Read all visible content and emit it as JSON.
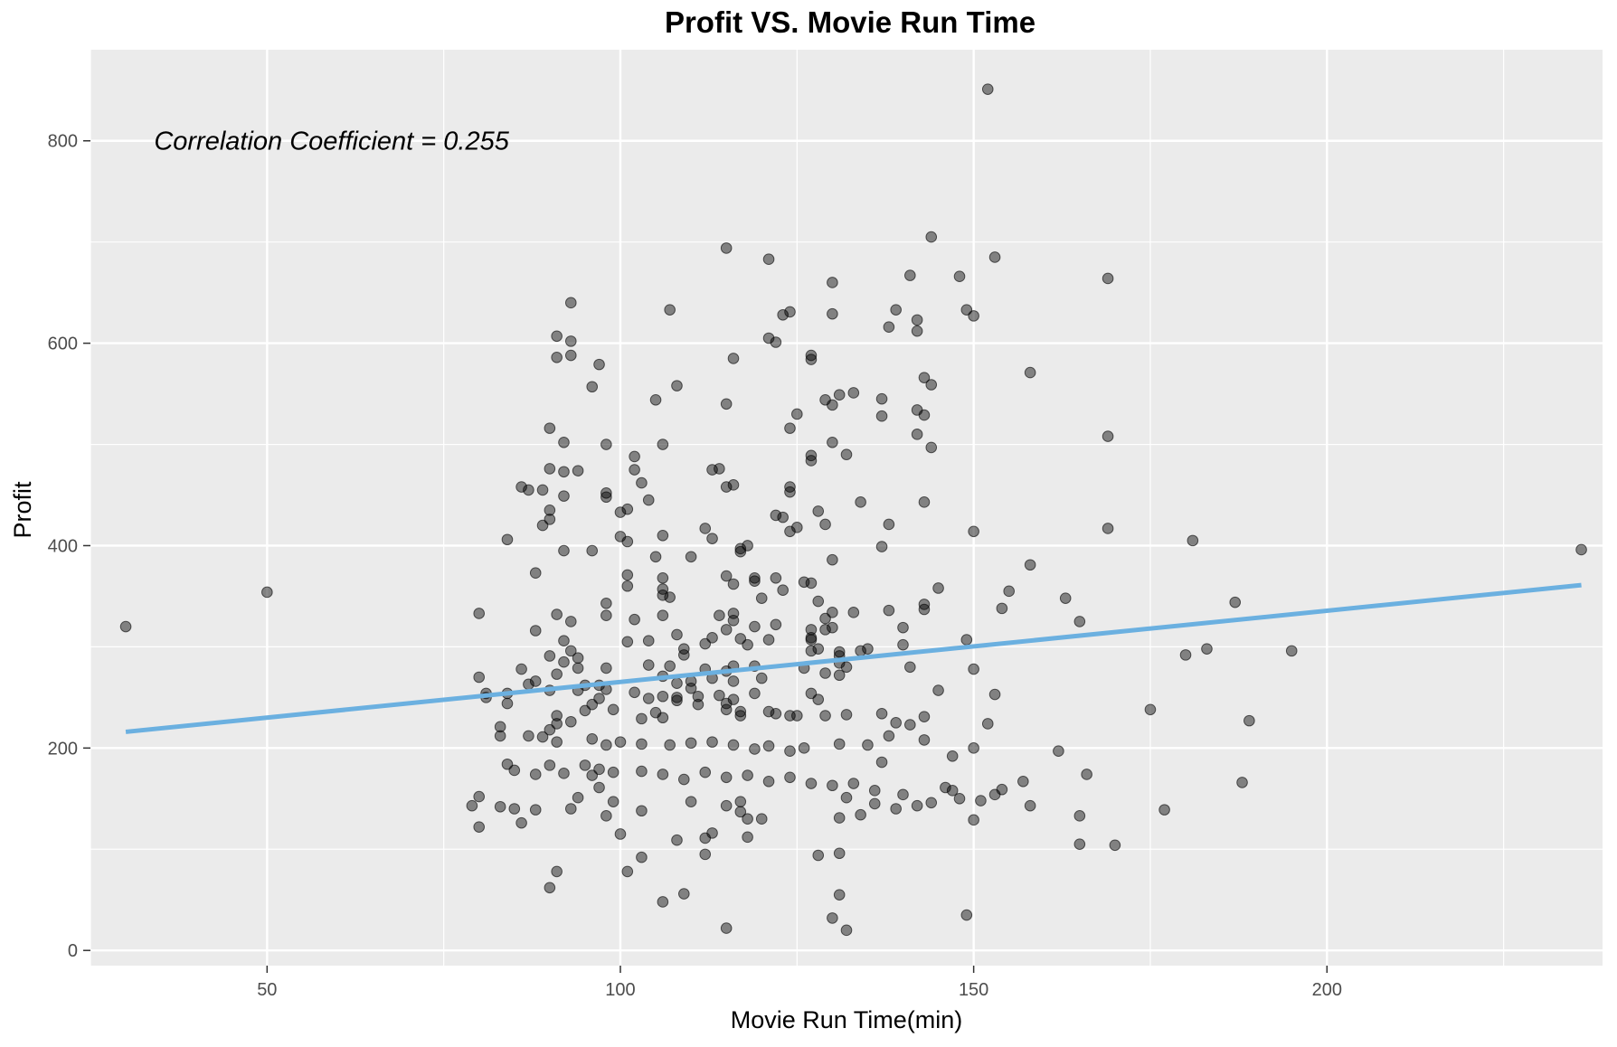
{
  "chart_data": {
    "type": "scatter",
    "title": "Profit VS. Movie Run Time",
    "xlabel": "Movie Run Time(min)",
    "ylabel": "Profit",
    "xlim": [
      25,
      239
    ],
    "ylim": [
      -15,
      890
    ],
    "x_ticks": [
      50,
      100,
      150,
      200
    ],
    "y_ticks": [
      0,
      200,
      400,
      600,
      800
    ],
    "grid": true,
    "annotation": "Correlation Coefficient = 0.255",
    "annotation_at": {
      "x": 34,
      "y": 800
    },
    "colors": {
      "panel": "#EBEBEB",
      "grid": "#FFFFFF",
      "points": "#000000",
      "fit_line": "#6BB0E0"
    },
    "fit_line": {
      "x": [
        30,
        236
      ],
      "y": [
        216,
        361
      ]
    },
    "points": [
      [
        30,
        320
      ],
      [
        50,
        354
      ],
      [
        236,
        396
      ],
      [
        152,
        851
      ],
      [
        144,
        705
      ],
      [
        115,
        694
      ],
      [
        121,
        683
      ],
      [
        153,
        685
      ],
      [
        148,
        666
      ],
      [
        141,
        667
      ],
      [
        169,
        664
      ],
      [
        130,
        660
      ],
      [
        93,
        640
      ],
      [
        107,
        633
      ],
      [
        149,
        633
      ],
      [
        139,
        633
      ],
      [
        124,
        631
      ],
      [
        123,
        628
      ],
      [
        130,
        629
      ],
      [
        150,
        627
      ],
      [
        142,
        623
      ],
      [
        91,
        607
      ],
      [
        93,
        602
      ],
      [
        121,
        605
      ],
      [
        122,
        601
      ],
      [
        138,
        616
      ],
      [
        142,
        612
      ],
      [
        91,
        586
      ],
      [
        93,
        588
      ],
      [
        97,
        579
      ],
      [
        116,
        585
      ],
      [
        127,
        588
      ],
      [
        127,
        584
      ],
      [
        158,
        571
      ],
      [
        143,
        566
      ],
      [
        96,
        557
      ],
      [
        108,
        558
      ],
      [
        144,
        559
      ],
      [
        133,
        551
      ],
      [
        131,
        549
      ],
      [
        137,
        545
      ],
      [
        129,
        544
      ],
      [
        130,
        539
      ],
      [
        115,
        540
      ],
      [
        105,
        544
      ],
      [
        142,
        534
      ],
      [
        143,
        529
      ],
      [
        137,
        528
      ],
      [
        125,
        530
      ],
      [
        90,
        516
      ],
      [
        124,
        516
      ],
      [
        142,
        510
      ],
      [
        169,
        508
      ],
      [
        92,
        502
      ],
      [
        106,
        500
      ],
      [
        98,
        500
      ],
      [
        130,
        502
      ],
      [
        144,
        497
      ],
      [
        127,
        489
      ],
      [
        132,
        490
      ],
      [
        102,
        488
      ],
      [
        127,
        484
      ],
      [
        114,
        476
      ],
      [
        113,
        475
      ],
      [
        94,
        474
      ],
      [
        102,
        475
      ],
      [
        90,
        476
      ],
      [
        92,
        473
      ],
      [
        103,
        462
      ],
      [
        116,
        460
      ],
      [
        115,
        458
      ],
      [
        124,
        458
      ],
      [
        124,
        453
      ],
      [
        86,
        458
      ],
      [
        87,
        455
      ],
      [
        89,
        455
      ],
      [
        98,
        452
      ],
      [
        98,
        448
      ],
      [
        92,
        449
      ],
      [
        104,
        445
      ],
      [
        134,
        443
      ],
      [
        143,
        443
      ],
      [
        90,
        435
      ],
      [
        100,
        433
      ],
      [
        101,
        436
      ],
      [
        122,
        430
      ],
      [
        128,
        434
      ],
      [
        90,
        426
      ],
      [
        123,
        428
      ],
      [
        89,
        420
      ],
      [
        129,
        421
      ],
      [
        138,
        421
      ],
      [
        125,
        418
      ],
      [
        112,
        417
      ],
      [
        124,
        414
      ],
      [
        150,
        414
      ],
      [
        169,
        417
      ],
      [
        100,
        409
      ],
      [
        101,
        404
      ],
      [
        106,
        410
      ],
      [
        113,
        407
      ],
      [
        181,
        405
      ],
      [
        84,
        406
      ],
      [
        117,
        394
      ],
      [
        117,
        397
      ],
      [
        118,
        400
      ],
      [
        96,
        395
      ],
      [
        92,
        395
      ],
      [
        137,
        399
      ],
      [
        110,
        389
      ],
      [
        105,
        389
      ],
      [
        158,
        381
      ],
      [
        130,
        386
      ],
      [
        88,
        373
      ],
      [
        101,
        371
      ],
      [
        119,
        365
      ],
      [
        119,
        368
      ],
      [
        115,
        370
      ],
      [
        122,
        368
      ],
      [
        123,
        356
      ],
      [
        116,
        362
      ],
      [
        106,
        368
      ],
      [
        106,
        357
      ],
      [
        106,
        351
      ],
      [
        101,
        360
      ],
      [
        127,
        363
      ],
      [
        126,
        364
      ],
      [
        98,
        343
      ],
      [
        107,
        349
      ],
      [
        120,
        348
      ],
      [
        128,
        345
      ],
      [
        143,
        342
      ],
      [
        145,
        358
      ],
      [
        155,
        355
      ],
      [
        163,
        348
      ],
      [
        133,
        334
      ],
      [
        130,
        334
      ],
      [
        143,
        337
      ],
      [
        106,
        331
      ],
      [
        93,
        325
      ],
      [
        91,
        332
      ],
      [
        138,
        336
      ],
      [
        154,
        338
      ],
      [
        187,
        344
      ],
      [
        80,
        333
      ],
      [
        98,
        331
      ],
      [
        102,
        327
      ],
      [
        114,
        331
      ],
      [
        116,
        333
      ],
      [
        119,
        320
      ],
      [
        122,
        322
      ],
      [
        116,
        326
      ],
      [
        129,
        328
      ],
      [
        130,
        319
      ],
      [
        127,
        317
      ],
      [
        140,
        319
      ],
      [
        129,
        317
      ],
      [
        115,
        317
      ],
      [
        117,
        308
      ],
      [
        118,
        302
      ],
      [
        121,
        307
      ],
      [
        109,
        298
      ],
      [
        112,
        303
      ],
      [
        108,
        312
      ],
      [
        104,
        306
      ],
      [
        127,
        309
      ],
      [
        101,
        305
      ],
      [
        92,
        306
      ],
      [
        88,
        316
      ],
      [
        127,
        307
      ],
      [
        134,
        296
      ],
      [
        140,
        302
      ],
      [
        113,
        309
      ],
      [
        94,
        289
      ],
      [
        90,
        291
      ],
      [
        93,
        296
      ],
      [
        92,
        285
      ],
      [
        109,
        292
      ],
      [
        127,
        296
      ],
      [
        149,
        307
      ],
      [
        165,
        325
      ],
      [
        183,
        298
      ],
      [
        180,
        292
      ],
      [
        195,
        296
      ],
      [
        131,
        295
      ],
      [
        135,
        298
      ],
      [
        128,
        298
      ],
      [
        131,
        291
      ],
      [
        98,
        279
      ],
      [
        104,
        282
      ],
      [
        107,
        281
      ],
      [
        86,
        278
      ],
      [
        94,
        279
      ],
      [
        112,
        278
      ],
      [
        116,
        281
      ],
      [
        119,
        281
      ],
      [
        126,
        279
      ],
      [
        129,
        274
      ],
      [
        131,
        284
      ],
      [
        132,
        280
      ],
      [
        131,
        272
      ],
      [
        141,
        280
      ],
      [
        150,
        278
      ],
      [
        91,
        273
      ],
      [
        88,
        266
      ],
      [
        97,
        262
      ],
      [
        95,
        262
      ],
      [
        98,
        258
      ],
      [
        108,
        264
      ],
      [
        110,
        266
      ],
      [
        116,
        266
      ],
      [
        106,
        271
      ],
      [
        113,
        269
      ],
      [
        120,
        269
      ],
      [
        115,
        276
      ],
      [
        127,
        254
      ],
      [
        102,
        255
      ],
      [
        110,
        259
      ],
      [
        106,
        251
      ],
      [
        111,
        251
      ],
      [
        114,
        252
      ],
      [
        116,
        248
      ],
      [
        119,
        254
      ],
      [
        84,
        254
      ],
      [
        81,
        254
      ],
      [
        81,
        250
      ],
      [
        84,
        244
      ],
      [
        87,
        263
      ],
      [
        80,
        270
      ],
      [
        90,
        257
      ],
      [
        94,
        257
      ],
      [
        97,
        249
      ],
      [
        96,
        243
      ],
      [
        104,
        249
      ],
      [
        108,
        250
      ],
      [
        108,
        247
      ],
      [
        111,
        243
      ],
      [
        115,
        244
      ],
      [
        115,
        238
      ],
      [
        117,
        236
      ],
      [
        122,
        234
      ],
      [
        124,
        232
      ],
      [
        125,
        232
      ],
      [
        145,
        257
      ],
      [
        143,
        231
      ],
      [
        129,
        232
      ],
      [
        137,
        234
      ],
      [
        139,
        225
      ],
      [
        141,
        223
      ],
      [
        132,
        233
      ],
      [
        128,
        248
      ],
      [
        117,
        232
      ],
      [
        121,
        236
      ],
      [
        105,
        235
      ],
      [
        106,
        230
      ],
      [
        103,
        229
      ],
      [
        95,
        237
      ],
      [
        99,
        238
      ],
      [
        91,
        232
      ],
      [
        91,
        224
      ],
      [
        93,
        226
      ],
      [
        90,
        218
      ],
      [
        83,
        221
      ],
      [
        83,
        212
      ],
      [
        87,
        212
      ],
      [
        89,
        211
      ],
      [
        91,
        206
      ],
      [
        96,
        209
      ],
      [
        98,
        203
      ],
      [
        100,
        206
      ],
      [
        103,
        204
      ],
      [
        107,
        203
      ],
      [
        110,
        205
      ],
      [
        113,
        206
      ],
      [
        116,
        203
      ],
      [
        119,
        199
      ],
      [
        121,
        202
      ],
      [
        124,
        197
      ],
      [
        126,
        200
      ],
      [
        131,
        204
      ],
      [
        135,
        203
      ],
      [
        138,
        212
      ],
      [
        143,
        208
      ],
      [
        147,
        192
      ],
      [
        150,
        200
      ],
      [
        152,
        224
      ],
      [
        153,
        253
      ],
      [
        162,
        197
      ],
      [
        166,
        174
      ],
      [
        175,
        238
      ],
      [
        189,
        227
      ],
      [
        188,
        166
      ],
      [
        177,
        139
      ],
      [
        170,
        104
      ],
      [
        165,
        105
      ],
      [
        165,
        133
      ],
      [
        149,
        35
      ],
      [
        150,
        129
      ],
      [
        147,
        158
      ],
      [
        158,
        143
      ],
      [
        154,
        159
      ],
      [
        157,
        167
      ],
      [
        142,
        143
      ],
      [
        140,
        154
      ],
      [
        139,
        140
      ],
      [
        136,
        145
      ],
      [
        132,
        151
      ],
      [
        134,
        134
      ],
      [
        131,
        131
      ],
      [
        131,
        96
      ],
      [
        128,
        94
      ],
      [
        131,
        55
      ],
      [
        130,
        32
      ],
      [
        132,
        20
      ],
      [
        118,
        112
      ],
      [
        120,
        130
      ],
      [
        117,
        147
      ],
      [
        115,
        143
      ],
      [
        117,
        137
      ],
      [
        118,
        130
      ],
      [
        113,
        116
      ],
      [
        112,
        95
      ],
      [
        115,
        22
      ],
      [
        106,
        48
      ],
      [
        108,
        109
      ],
      [
        109,
        56
      ],
      [
        112,
        111
      ],
      [
        110,
        147
      ],
      [
        103,
        138
      ],
      [
        103,
        92
      ],
      [
        101,
        78
      ],
      [
        100,
        115
      ],
      [
        98,
        133
      ],
      [
        99,
        147
      ],
      [
        97,
        161
      ],
      [
        97,
        179
      ],
      [
        96,
        173
      ],
      [
        94,
        151
      ],
      [
        93,
        140
      ],
      [
        90,
        62
      ],
      [
        91,
        78
      ],
      [
        88,
        139
      ],
      [
        86,
        126
      ],
      [
        85,
        140
      ],
      [
        83,
        142
      ],
      [
        80,
        122
      ],
      [
        79,
        143
      ],
      [
        80,
        152
      ],
      [
        85,
        178
      ],
      [
        84,
        184
      ],
      [
        88,
        174
      ],
      [
        90,
        183
      ],
      [
        92,
        175
      ],
      [
        95,
        183
      ],
      [
        99,
        176
      ],
      [
        103,
        177
      ],
      [
        106,
        174
      ],
      [
        109,
        169
      ],
      [
        112,
        176
      ],
      [
        115,
        171
      ],
      [
        118,
        173
      ],
      [
        121,
        167
      ],
      [
        124,
        171
      ],
      [
        127,
        165
      ],
      [
        130,
        163
      ],
      [
        133,
        165
      ],
      [
        136,
        158
      ],
      [
        137,
        186
      ],
      [
        144,
        146
      ],
      [
        146,
        161
      ],
      [
        148,
        150
      ],
      [
        151,
        148
      ],
      [
        153,
        154
      ]
    ]
  }
}
